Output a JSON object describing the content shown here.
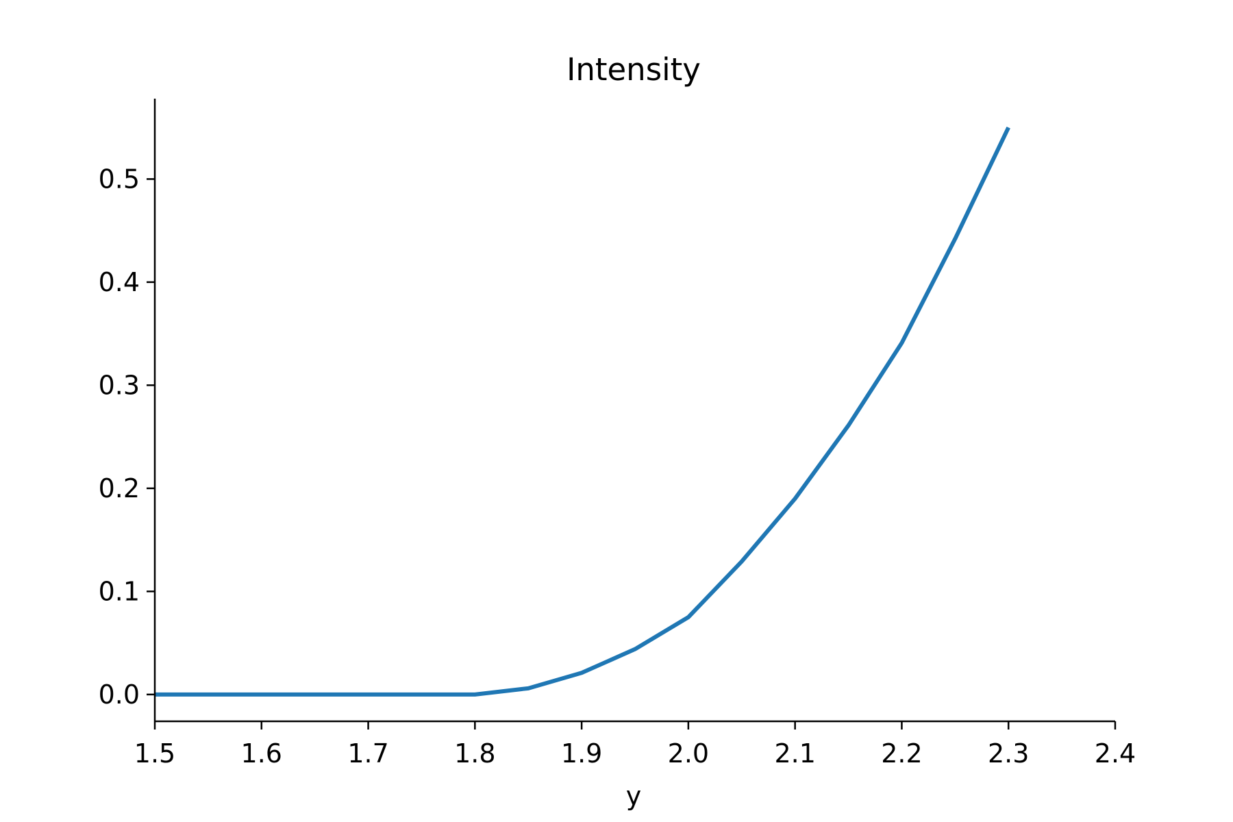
{
  "chart_data": {
    "type": "line",
    "title": "Intensity",
    "xlabel": "y",
    "ylabel": "",
    "xlim": [
      1.5,
      2.4
    ],
    "ylim": [
      -0.026,
      0.578
    ],
    "xticks": [
      1.5,
      1.6,
      1.7,
      1.8,
      1.9,
      2.0,
      2.1,
      2.2,
      2.3,
      2.4
    ],
    "xtick_labels": [
      "1.5",
      "1.6",
      "1.7",
      "1.8",
      "1.9",
      "2.0",
      "2.1",
      "2.2",
      "2.3",
      "2.4"
    ],
    "yticks": [
      0.0,
      0.1,
      0.2,
      0.3,
      0.4,
      0.5
    ],
    "ytick_labels": [
      "0.0",
      "0.1",
      "0.2",
      "0.3",
      "0.4",
      "0.5"
    ],
    "grid": false,
    "series": [
      {
        "color": "#1f77b4",
        "x": [
          1.5,
          1.6,
          1.7,
          1.8,
          1.85,
          1.9,
          1.95,
          2.0,
          2.05,
          2.1,
          2.15,
          2.2,
          2.25,
          2.3
        ],
        "y": [
          0.0,
          0.0,
          0.0,
          0.0,
          0.006,
          0.021,
          0.044,
          0.075,
          0.129,
          0.19,
          0.261,
          0.341,
          0.442,
          0.55
        ]
      }
    ]
  }
}
